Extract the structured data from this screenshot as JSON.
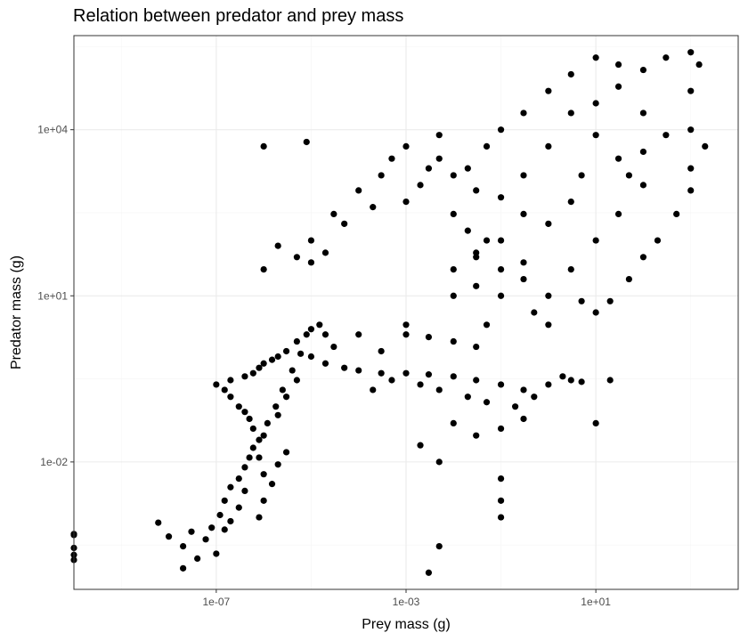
{
  "chart_data": {
    "type": "scatter",
    "title": "Relation between predator and prey mass",
    "xlabel": "Prey mass (g)",
    "ylabel": "Predator mass (g)",
    "x_scale": "log10",
    "y_scale": "log10",
    "xlim": [
      1e-10,
      10000.0
    ],
    "ylim": [
      5e-05,
      500000
    ],
    "x_ticks": [
      {
        "value": 1e-07,
        "label": "1e-07"
      },
      {
        "value": 0.001,
        "label": "1e-03"
      },
      {
        "value": 10,
        "label": "1e+01"
      }
    ],
    "y_ticks": [
      {
        "value": 0.01,
        "label": "1e-02"
      },
      {
        "value": 10,
        "label": "1e+01"
      },
      {
        "value": 10000,
        "label": "1e+04"
      }
    ],
    "grid": true,
    "marker_color": "#000000",
    "panel_border_color": "#333333",
    "grid_major_color": "#ebebeb",
    "grid_minor_color": "#f5f5f5",
    "series": [
      {
        "points": [
          {
            "x": 1e-10,
            "y": 0.0005
          },
          {
            "x": 1e-10,
            "y": 0.00028
          },
          {
            "x": 1e-10,
            "y": 0.00017
          },
          {
            "x": 1e-10,
            "y": 0.00021
          },
          {
            "x": 1e-10,
            "y": 0.00048
          },
          {
            "x": 6e-09,
            "y": 0.0008
          },
          {
            "x": 1e-08,
            "y": 0.00045
          },
          {
            "x": 2e-08,
            "y": 0.0003
          },
          {
            "x": 3e-08,
            "y": 0.00055
          },
          {
            "x": 4e-08,
            "y": 0.00018
          },
          {
            "x": 2e-08,
            "y": 0.00012
          },
          {
            "x": 6e-08,
            "y": 0.0004
          },
          {
            "x": 8e-08,
            "y": 0.00065
          },
          {
            "x": 1e-07,
            "y": 0.00022
          },
          {
            "x": 1.2e-07,
            "y": 0.0011
          },
          {
            "x": 1.5e-07,
            "y": 0.002
          },
          {
            "x": 2e-07,
            "y": 0.0035
          },
          {
            "x": 3e-07,
            "y": 0.005
          },
          {
            "x": 4e-07,
            "y": 0.008
          },
          {
            "x": 5e-07,
            "y": 0.012
          },
          {
            "x": 6e-07,
            "y": 0.018
          },
          {
            "x": 8e-07,
            "y": 0.025
          },
          {
            "x": 1e-06,
            "y": 0.006
          },
          {
            "x": 1.5e-06,
            "y": 0.004
          },
          {
            "x": 2e-06,
            "y": 0.009
          },
          {
            "x": 3e-06,
            "y": 0.015
          },
          {
            "x": 4e-07,
            "y": 0.003
          },
          {
            "x": 3e-07,
            "y": 0.0015
          },
          {
            "x": 2e-07,
            "y": 0.00085
          },
          {
            "x": 1.5e-07,
            "y": 0.0006
          },
          {
            "x": 8e-07,
            "y": 0.001
          },
          {
            "x": 1e-06,
            "y": 0.002
          },
          {
            "x": 6e-07,
            "y": 0.04
          },
          {
            "x": 5e-07,
            "y": 0.06
          },
          {
            "x": 4e-07,
            "y": 0.08
          },
          {
            "x": 3e-07,
            "y": 0.1
          },
          {
            "x": 2e-07,
            "y": 0.15
          },
          {
            "x": 1.5e-07,
            "y": 0.2
          },
          {
            "x": 1e-07,
            "y": 0.25
          },
          {
            "x": 2e-07,
            "y": 0.3
          },
          {
            "x": 4e-07,
            "y": 0.35
          },
          {
            "x": 6e-07,
            "y": 0.4
          },
          {
            "x": 8e-07,
            "y": 0.5
          },
          {
            "x": 1e-06,
            "y": 0.6
          },
          {
            "x": 1.5e-06,
            "y": 0.7
          },
          {
            "x": 2e-06,
            "y": 0.8
          },
          {
            "x": 3e-06,
            "y": 1.0
          },
          {
            "x": 5e-06,
            "y": 1.5
          },
          {
            "x": 8e-06,
            "y": 2.0
          },
          {
            "x": 1e-05,
            "y": 2.5
          },
          {
            "x": 1.5e-05,
            "y": 3.0
          },
          {
            "x": 2e-05,
            "y": 2.0
          },
          {
            "x": 3e-05,
            "y": 1.2
          },
          {
            "x": 5e-06,
            "y": 0.3
          },
          {
            "x": 3e-06,
            "y": 0.15
          },
          {
            "x": 2e-06,
            "y": 0.07
          },
          {
            "x": 1e-06,
            "y": 0.03
          },
          {
            "x": 8e-07,
            "y": 0.012
          },
          {
            "x": 1.2e-06,
            "y": 0.05
          },
          {
            "x": 1.8e-06,
            "y": 0.1
          },
          {
            "x": 2.5e-06,
            "y": 0.2
          },
          {
            "x": 4e-06,
            "y": 0.45
          },
          {
            "x": 6e-06,
            "y": 0.9
          },
          {
            "x": 1e-05,
            "y": 0.8
          },
          {
            "x": 2e-05,
            "y": 0.6
          },
          {
            "x": 5e-05,
            "y": 0.5
          },
          {
            "x": 0.0001,
            "y": 0.45
          },
          {
            "x": 0.0003,
            "y": 0.4
          },
          {
            "x": 0.001,
            "y": 0.4
          },
          {
            "x": 0.003,
            "y": 0.38
          },
          {
            "x": 0.01,
            "y": 0.35
          },
          {
            "x": 0.03,
            "y": 0.3
          },
          {
            "x": 0.1,
            "y": 0.25
          },
          {
            "x": 0.3,
            "y": 0.2
          },
          {
            "x": 1.0,
            "y": 0.25
          },
          {
            "x": 3.0,
            "y": 0.3
          },
          {
            "x": 5.0,
            "y": 0.28
          },
          {
            "x": 0.0002,
            "y": 0.2
          },
          {
            "x": 0.0005,
            "y": 0.3
          },
          {
            "x": 0.002,
            "y": 0.25
          },
          {
            "x": 0.005,
            "y": 0.2
          },
          {
            "x": 0.02,
            "y": 0.15
          },
          {
            "x": 0.05,
            "y": 0.12
          },
          {
            "x": 0.2,
            "y": 0.1
          },
          {
            "x": 0.5,
            "y": 0.15
          },
          {
            "x": 2.0,
            "y": 0.35
          },
          {
            "x": 0.001,
            "y": 2.0
          },
          {
            "x": 0.003,
            "y": 1.8
          },
          {
            "x": 0.01,
            "y": 1.5
          },
          {
            "x": 0.03,
            "y": 1.2
          },
          {
            "x": 0.01,
            "y": 0.05
          },
          {
            "x": 0.03,
            "y": 0.03
          },
          {
            "x": 0.1,
            "y": 0.04
          },
          {
            "x": 0.3,
            "y": 0.06
          },
          {
            "x": 0.1,
            "y": 0.005
          },
          {
            "x": 0.1,
            "y": 0.002
          },
          {
            "x": 0.005,
            "y": 0.0003
          },
          {
            "x": 0.003,
            "y": 0.0001
          },
          {
            "x": 0.002,
            "y": 0.02
          },
          {
            "x": 0.005,
            "y": 0.01
          },
          {
            "x": 10.0,
            "y": 0.05
          },
          {
            "x": 20.0,
            "y": 0.3
          },
          {
            "x": 0.1,
            "y": 0.001
          },
          {
            "x": 1e-05,
            "y": 100
          },
          {
            "x": 3e-05,
            "y": 300
          },
          {
            "x": 1e-06,
            "y": 5000
          },
          {
            "x": 8e-06,
            "y": 6000
          },
          {
            "x": 1e-06,
            "y": 30
          },
          {
            "x": 2e-06,
            "y": 80
          },
          {
            "x": 5e-06,
            "y": 50
          },
          {
            "x": 1e-05,
            "y": 40
          },
          {
            "x": 2e-05,
            "y": 60
          },
          {
            "x": 5e-05,
            "y": 200
          },
          {
            "x": 0.0001,
            "y": 800
          },
          {
            "x": 0.0002,
            "y": 400
          },
          {
            "x": 0.0003,
            "y": 1500
          },
          {
            "x": 0.0005,
            "y": 3000
          },
          {
            "x": 0.001,
            "y": 500
          },
          {
            "x": 0.002,
            "y": 1000
          },
          {
            "x": 0.003,
            "y": 2000
          },
          {
            "x": 0.001,
            "y": 5000
          },
          {
            "x": 0.005,
            "y": 8000
          },
          {
            "x": 0.01,
            "y": 300
          },
          {
            "x": 0.02,
            "y": 150
          },
          {
            "x": 0.05,
            "y": 100
          },
          {
            "x": 0.03,
            "y": 60
          },
          {
            "x": 0.1,
            "y": 30
          },
          {
            "x": 0.1,
            "y": 10
          },
          {
            "x": 0.3,
            "y": 20
          },
          {
            "x": 0.5,
            "y": 5
          },
          {
            "x": 1.0,
            "y": 3
          },
          {
            "x": 0.05,
            "y": 3
          },
          {
            "x": 0.01,
            "y": 30
          },
          {
            "x": 0.02,
            "y": 2000
          },
          {
            "x": 0.05,
            "y": 5000
          },
          {
            "x": 0.1,
            "y": 10000
          },
          {
            "x": 0.3,
            "y": 20000
          },
          {
            "x": 1.0,
            "y": 50000
          },
          {
            "x": 3.0,
            "y": 100000
          },
          {
            "x": 10.0,
            "y": 200000
          },
          {
            "x": 30.0,
            "y": 150000
          },
          {
            "x": 100.0,
            "y": 120000
          },
          {
            "x": 300.0,
            "y": 200000
          },
          {
            "x": 1000.0,
            "y": 250000
          },
          {
            "x": 1500.0,
            "y": 150000
          },
          {
            "x": 1000.0,
            "y": 50000
          },
          {
            "x": 1000.0,
            "y": 10000
          },
          {
            "x": 2000.0,
            "y": 5000
          },
          {
            "x": 1000.0,
            "y": 2000
          },
          {
            "x": 1000.0,
            "y": 800
          },
          {
            "x": 500.0,
            "y": 300
          },
          {
            "x": 200.0,
            "y": 100
          },
          {
            "x": 100.0,
            "y": 50
          },
          {
            "x": 50.0,
            "y": 20
          },
          {
            "x": 20.0,
            "y": 8
          },
          {
            "x": 10.0,
            "y": 5
          },
          {
            "x": 5.0,
            "y": 8
          },
          {
            "x": 1.0,
            "y": 10
          },
          {
            "x": 0.3,
            "y": 40
          },
          {
            "x": 3.0,
            "y": 30
          },
          {
            "x": 10.0,
            "y": 100
          },
          {
            "x": 30.0,
            "y": 300
          },
          {
            "x": 100.0,
            "y": 1000
          },
          {
            "x": 30.0,
            "y": 3000
          },
          {
            "x": 10.0,
            "y": 8000
          },
          {
            "x": 3.0,
            "y": 20000
          },
          {
            "x": 1.0,
            "y": 5000
          },
          {
            "x": 0.3,
            "y": 1500
          },
          {
            "x": 0.1,
            "y": 600
          },
          {
            "x": 0.03,
            "y": 800
          },
          {
            "x": 0.01,
            "y": 1500
          },
          {
            "x": 0.005,
            "y": 3000
          },
          {
            "x": 1.0,
            "y": 200
          },
          {
            "x": 3.0,
            "y": 500
          },
          {
            "x": 5.0,
            "y": 1500
          },
          {
            "x": 10.0,
            "y": 30000
          },
          {
            "x": 30.0,
            "y": 60000
          },
          {
            "x": 100.0,
            "y": 20000
          },
          {
            "x": 300.0,
            "y": 8000
          },
          {
            "x": 100.0,
            "y": 4000
          },
          {
            "x": 50.0,
            "y": 1500
          },
          {
            "x": 0.3,
            "y": 300
          },
          {
            "x": 0.1,
            "y": 100
          },
          {
            "x": 0.03,
            "y": 50
          },
          {
            "x": 0.001,
            "y": 3
          },
          {
            "x": 0.0003,
            "y": 1
          },
          {
            "x": 0.0001,
            "y": 2
          },
          {
            "x": 0.01,
            "y": 10
          },
          {
            "x": 0.03,
            "y": 15
          }
        ]
      }
    ]
  }
}
